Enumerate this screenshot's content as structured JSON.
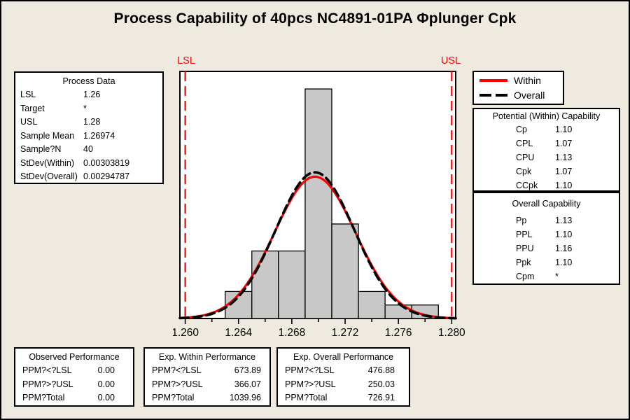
{
  "title": "Process Capability of 40pcs NC4891-01PA Φplunger Cpk",
  "colors": {
    "background": "#EEEAE0",
    "plot_background": "#FFFFFF",
    "bar_fill": "#C8C8C8",
    "bar_border": "#000000",
    "within_curve": "#FF0000",
    "overall_curve": "#000000",
    "spec_line": "#FF0000",
    "box_border": "#000000",
    "text": "#000000"
  },
  "legend": {
    "items": [
      {
        "label": "Within",
        "style": "solid",
        "color": "#FF0000"
      },
      {
        "label": "Overall",
        "style": "dashed",
        "color": "#000000"
      }
    ]
  },
  "boxes": {
    "process_data": {
      "title": "Process Data",
      "rows": [
        {
          "label": "LSL",
          "value": "1.26"
        },
        {
          "label": "Target",
          "value": "*"
        },
        {
          "label": "USL",
          "value": "1.28"
        },
        {
          "label": "Sample Mean",
          "value": "1.26974"
        },
        {
          "label": "Sample?N",
          "value": "40"
        },
        {
          "label": "StDev(Within)",
          "value": "0.00303819"
        },
        {
          "label": "StDev(Overall)",
          "value": "0.00294787"
        }
      ]
    },
    "potential": {
      "title": "Potential (Within) Capability",
      "rows": [
        {
          "label": "Cp",
          "value": "1.10"
        },
        {
          "label": "CPL",
          "value": "1.07"
        },
        {
          "label": "CPU",
          "value": "1.13"
        },
        {
          "label": "Cpk",
          "value": "1.07"
        },
        {
          "label": "CCpk",
          "value": "1.10"
        }
      ]
    },
    "overall": {
      "title": "Overall Capability",
      "rows": [
        {
          "label": "Pp",
          "value": "1.13"
        },
        {
          "label": "PPL",
          "value": "1.10"
        },
        {
          "label": "PPU",
          "value": "1.16"
        },
        {
          "label": "Ppk",
          "value": "1.10"
        },
        {
          "label": "Cpm",
          "value": "*"
        }
      ]
    },
    "observed": {
      "title": "Observed Performance",
      "rows": [
        {
          "label": "PPM?<?LSL",
          "value": "0.00"
        },
        {
          "label": "PPM?>?USL",
          "value": "0.00"
        },
        {
          "label": "PPM?Total",
          "value": "0.00"
        }
      ]
    },
    "exp_within": {
      "title": "Exp. Within Performance",
      "rows": [
        {
          "label": "PPM?<?LSL",
          "value": "673.89"
        },
        {
          "label": "PPM?>?USL",
          "value": "366.07"
        },
        {
          "label": "PPM?Total",
          "value": "1039.96"
        }
      ]
    },
    "exp_overall": {
      "title": "Exp. Overall Performance",
      "rows": [
        {
          "label": "PPM?<?LSL",
          "value": "476.88"
        },
        {
          "label": "PPM?>?USL",
          "value": "250.03"
        },
        {
          "label": "PPM?Total",
          "value": "726.91"
        }
      ]
    }
  },
  "chart_data": {
    "type": "bar",
    "subtype": "capability-histogram-with-normal-curves",
    "n": 40,
    "xlim": [
      1.2596,
      1.2803
    ],
    "ylim_counts": [
      0,
      18.3
    ],
    "x_ticks": [
      1.26,
      1.264,
      1.268,
      1.272,
      1.276,
      1.28
    ],
    "x_tick_labels": [
      "1.260",
      "1.264",
      "1.268",
      "1.272",
      "1.276",
      "1.280"
    ],
    "bins": {
      "start": 1.263,
      "width": 0.002,
      "counts": [
        2,
        5,
        5,
        17,
        7,
        2,
        1,
        1
      ]
    },
    "lsl": 1.26,
    "usl": 1.28,
    "spec_labels": {
      "lsl": "LSL",
      "usl": "USL"
    },
    "curves": [
      {
        "name": "Within",
        "mean": 1.26974,
        "stdev": 0.00303819,
        "style": "solid",
        "color": "#FF0000"
      },
      {
        "name": "Overall",
        "mean": 1.26974,
        "stdev": 0.00294787,
        "style": "dashed",
        "color": "#000000"
      }
    ],
    "grid": false,
    "legend_position": "top-right"
  }
}
